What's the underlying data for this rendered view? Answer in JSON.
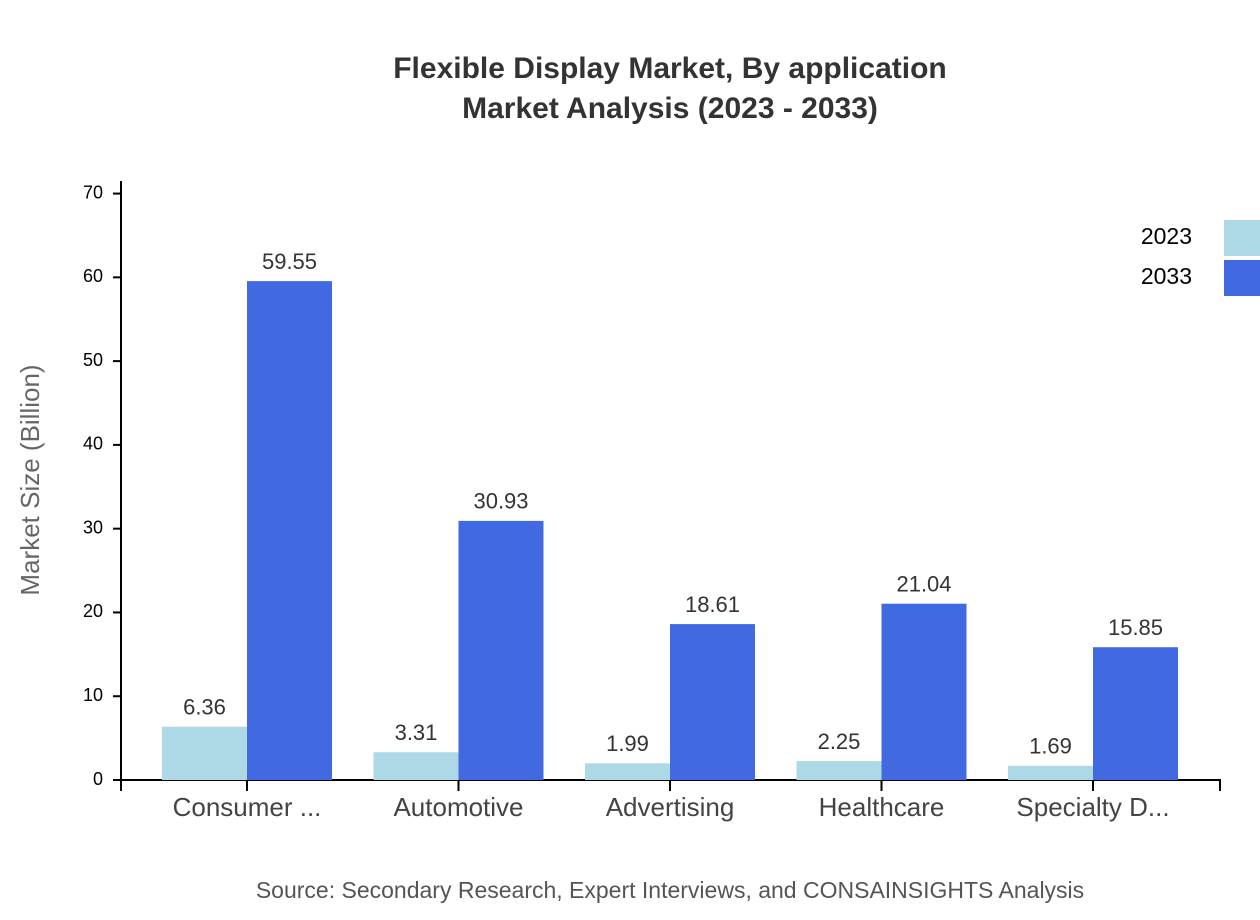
{
  "chart_data": {
    "type": "bar",
    "title": [
      "Flexible Display Market, By application",
      "Market Analysis (2023 - 2033)"
    ],
    "y_axis_label": "Market Size (Billion)",
    "source": "Source: Secondary Research, Expert Interviews, and CONSAINSIGHTS Analysis",
    "categories": [
      "Consumer ...",
      "Automotive",
      "Advertising",
      "Healthcare",
      "Specialty D..."
    ],
    "series": [
      {
        "name": "2023",
        "color": "#add8e6",
        "values": [
          6.36,
          3.31,
          1.99,
          2.25,
          1.69
        ]
      },
      {
        "name": "2033",
        "color": "#4169e1",
        "values": [
          59.55,
          30.93,
          18.61,
          21.04,
          15.85
        ]
      }
    ],
    "ylim": [
      0,
      71.5
    ],
    "yticks": [
      0,
      10,
      20,
      30,
      40,
      50,
      60,
      70
    ],
    "grid": false,
    "legend": "top-right"
  }
}
